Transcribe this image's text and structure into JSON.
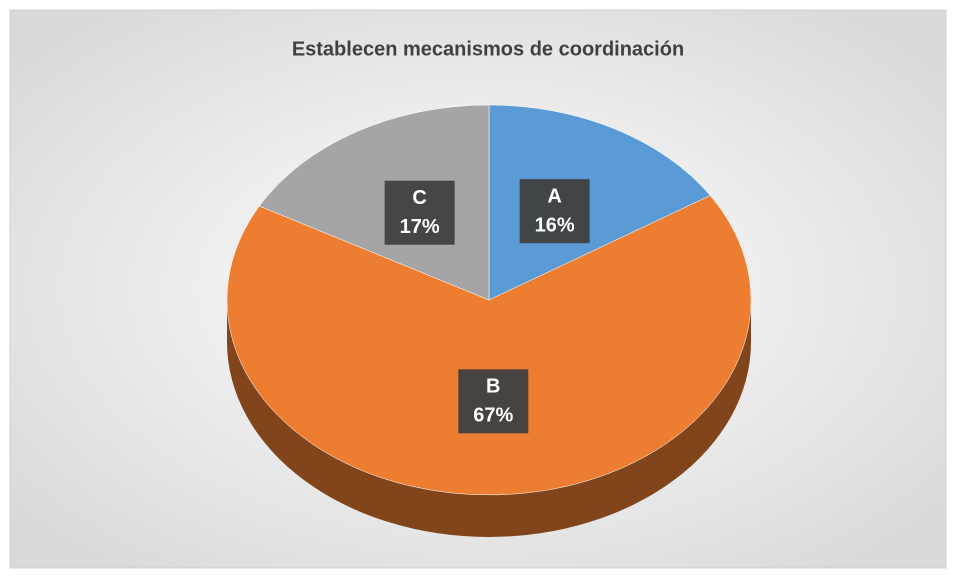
{
  "chart_data": {
    "type": "pie",
    "title": "Establecen mecanismos de coordinación",
    "categories": [
      "A",
      "B",
      "C"
    ],
    "values": [
      16,
      67,
      17
    ],
    "value_labels": [
      "16%",
      "67%",
      "17%"
    ],
    "colors": [
      "#5b9bd5",
      "#ed7d31",
      "#a5a5a5"
    ],
    "three_d": true
  }
}
